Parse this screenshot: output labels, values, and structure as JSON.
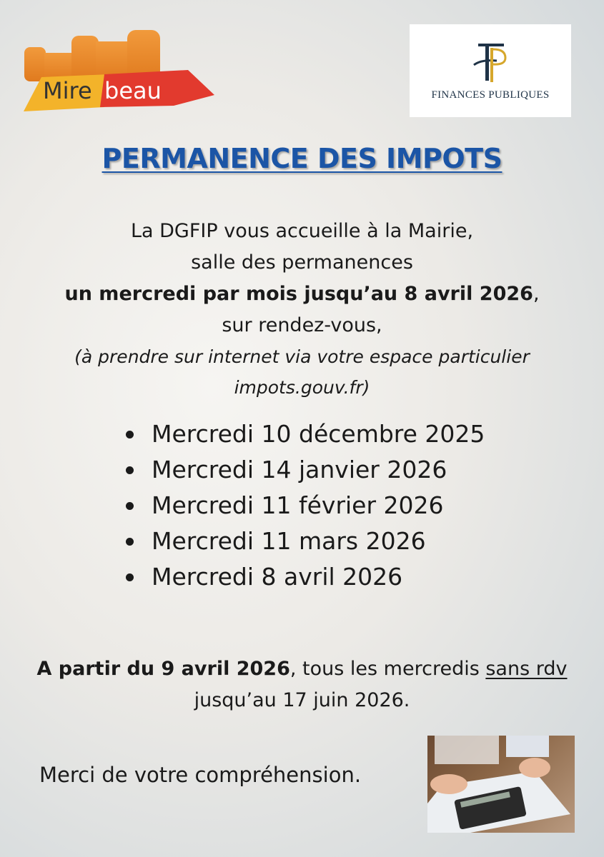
{
  "logos": {
    "left": "Mirebeau",
    "left_parts": [
      "Mire",
      "beau"
    ],
    "right": "FINANCES PUBLIQUES"
  },
  "title": "PERMANENCE DES IMPOTS",
  "intro": {
    "line1": "La DGFIP vous accueille à la Mairie,",
    "line2": "salle des permanences",
    "line3_bold": "un mercredi par mois jusqu’au 8 avril 2026",
    "line3_end": ",",
    "line4": "sur rendez-vous,",
    "line5": "(à prendre sur internet via votre espace particulier",
    "line6": "impots.gouv.fr)"
  },
  "dates": [
    "Mercredi 10 décembre 2025",
    "Mercredi 14 janvier 2026",
    "Mercredi 11 février 2026",
    "Mercredi 11 mars 2026",
    "Mercredi 8 avril 2026"
  ],
  "notice": {
    "bold": "A partir du 9 avril 2026",
    "text": ", tous les mercredis ",
    "underlined": "sans rdv",
    "line2": "jusqu’au 17 juin 2026."
  },
  "closing": "Merci de votre compréhension.",
  "colors": {
    "title": "#1b55a6",
    "logo_orange": "#e8892c",
    "logo_red": "#e23a2e",
    "logo_yellow": "#f3b32a",
    "fp_navy": "#1f3347",
    "fp_gold": "#d6a72c"
  }
}
